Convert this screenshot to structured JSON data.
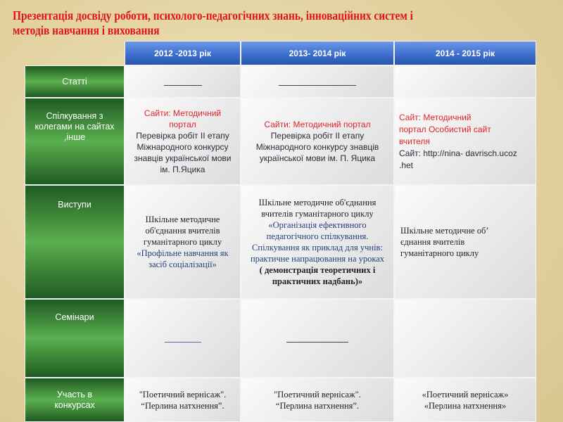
{
  "title": "Презентація досвіду  роботи, психолого-педагогічних знань, інноваційних систем і методів навчання і виховання",
  "headers": [
    "2012 -2013 рік",
    "2013- 2014 рік",
    "2014 - 2015 рік"
  ],
  "rows": [
    {
      "label": "Статті"
    },
    {
      "label": "Спілкування з колегами  на сайтах ,інше",
      "c1": {
        "red": "Сайти: Методичний портал",
        "text": "Перевірка робіт ІІ етапу Міжнародного конкурсу знавців української мови ім. П.Яцика"
      },
      "c2": {
        "red": "Сайти: Методичний портал",
        "text": "Перевірка робіт ІІ етапу Міжнародного конкурсу знавців української мови ім. П. Яцика"
      },
      "c3": {
        "red": "Сайт: Методичний портал Особистий сайт вчителя",
        "text": "Сайт: http://nina- davrisch.ucoz .het"
      }
    },
    {
      "label": "Виступи",
      "c1": {
        "text": "Шкільне методичне об'єднання вчителів гуманітарного циклу",
        "blue": "«Профільне навчання як засіб соціалізації»"
      },
      "c2": {
        "text": "Шкільне методичне об'єднання вчителів гуманітарного циклу",
        "blue": "«Організація ефективного педагогічного спілкування. Спілкування як приклад для учнів: практичне напрацювання на уроках",
        "bold": "( демонстрація теоретичних і практичних надбань)»"
      },
      "c3": {
        "text": "Шкільне методичне об’ єднання  вчителів гуманітарного циклу"
      }
    },
    {
      "label": "Семінари"
    },
    {
      "label": "Участь в конкурсах",
      "c1": {
        "l1": "\"Поетичний вернісаж\".",
        "l2": "“Перлина натхнення”."
      },
      "c2": {
        "l1": "\"Поетичний вернісаж\".",
        "l2": "“Перлина натхнення”."
      },
      "c3": {
        "l1": "«Поетичний вернісаж»",
        "l2": "«Перлина натхнення»"
      }
    }
  ]
}
